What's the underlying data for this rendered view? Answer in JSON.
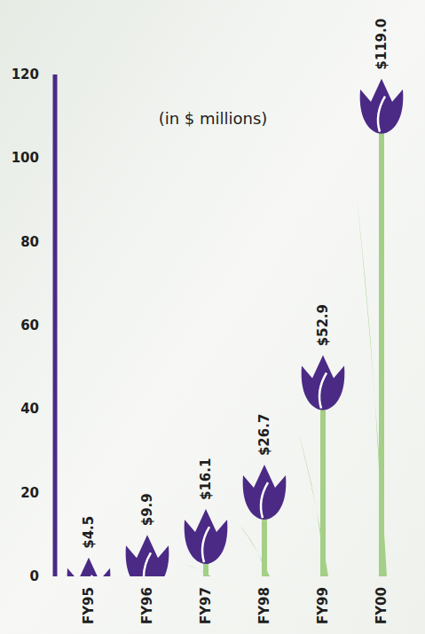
{
  "chart_data": {
    "type": "bar",
    "title": "(in $ millions)",
    "categories": [
      "FY95",
      "FY96",
      "FY97",
      "FY98",
      "FY99",
      "FY00"
    ],
    "values": [
      4.5,
      9.9,
      16.1,
      26.7,
      52.9,
      119.0
    ],
    "value_labels": [
      "$4.5",
      "$9.9",
      "$16.1",
      "$26.7",
      "$52.9",
      "$119.0"
    ],
    "color": "#4b2a86",
    "ylim": [
      0,
      120
    ],
    "yticks": [
      0,
      20,
      40,
      60,
      80,
      100,
      120
    ],
    "grid": false,
    "data_labels": true
  }
}
